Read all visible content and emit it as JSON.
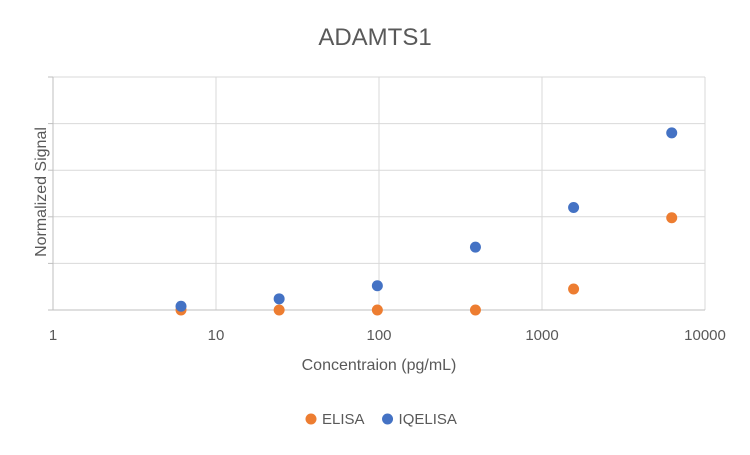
{
  "chart_data": {
    "type": "scatter",
    "title": "ADAMTS1",
    "xlabel": "Concentraion (pg/mL)",
    "ylabel": "Normalized Signal",
    "x_scale": "log",
    "xlim": [
      1,
      10000
    ],
    "x_ticks": [
      "1",
      "10",
      "100",
      "1000",
      "10000"
    ],
    "y_tick_count": 6,
    "ylim": [
      0,
      5
    ],
    "grid": true,
    "legend_position": "bottom",
    "series": [
      {
        "name": "ELISA",
        "color": "#ED7D31",
        "x": [
          6.1,
          24.4,
          97.7,
          390.6,
          1562.5,
          6250
        ],
        "y": [
          0.0,
          0.0,
          0.0,
          0.0,
          0.45,
          1.98
        ]
      },
      {
        "name": "IQELISA",
        "color": "#4472C4",
        "x": [
          6.1,
          24.4,
          97.7,
          390.6,
          1562.5,
          6250
        ],
        "y": [
          0.08,
          0.24,
          0.52,
          1.35,
          2.2,
          3.8
        ]
      }
    ]
  }
}
